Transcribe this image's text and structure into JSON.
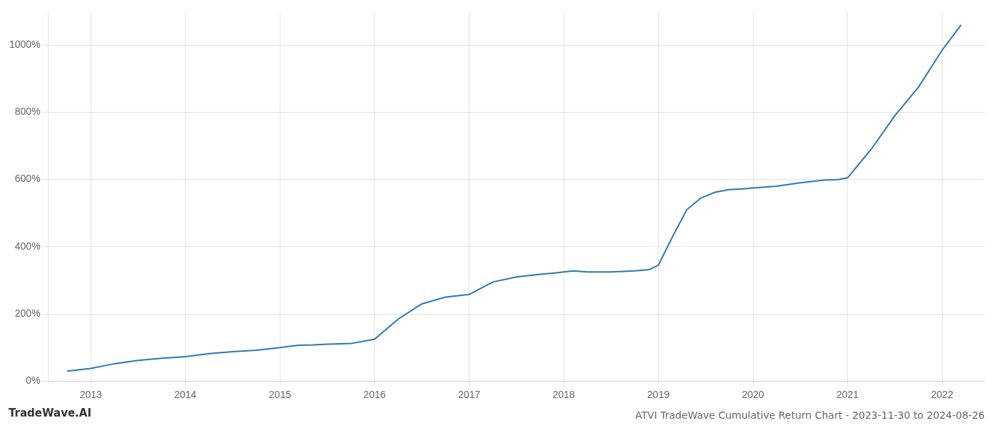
{
  "chart_data": {
    "type": "line",
    "title": "ATVI TradeWave Cumulative Return Chart - 2023-11-30 to 2024-08-26",
    "annotations": [
      "TradeWave.AI"
    ],
    "x": [
      2012.75,
      2013.0,
      2013.25,
      2013.5,
      2013.75,
      2014.0,
      2014.25,
      2014.5,
      2014.75,
      2015.0,
      2015.1,
      2015.2,
      2015.35,
      2015.5,
      2015.75,
      2016.0,
      2016.25,
      2016.5,
      2016.75,
      2017.0,
      2017.25,
      2017.5,
      2017.75,
      2017.9,
      2018.0,
      2018.1,
      2018.25,
      2018.5,
      2018.75,
      2018.9,
      2019.0,
      2019.15,
      2019.3,
      2019.45,
      2019.6,
      2019.75,
      2019.9,
      2020.0,
      2020.25,
      2020.5,
      2020.75,
      2020.9,
      2021.0,
      2021.25,
      2021.5,
      2021.75,
      2022.0,
      2022.2
    ],
    "values": [
      30,
      38,
      52,
      62,
      68,
      73,
      82,
      88,
      92,
      100,
      104,
      107,
      108,
      110,
      112,
      125,
      185,
      230,
      250,
      258,
      295,
      310,
      318,
      322,
      325,
      328,
      325,
      325,
      328,
      332,
      345,
      430,
      510,
      545,
      562,
      570,
      572,
      575,
      580,
      590,
      598,
      600,
      605,
      690,
      790,
      875,
      985,
      1060
    ],
    "color": "#2878b8",
    "xlim": [
      2012.55,
      2022.45
    ],
    "xticks": [
      2013,
      2014,
      2015,
      2016,
      2017,
      2018,
      2019,
      2020,
      2021,
      2022
    ],
    "ylim": [
      0,
      1100
    ],
    "yticks": [
      {
        "value": 0,
        "label": "0%"
      },
      {
        "value": 200,
        "label": "200%"
      },
      {
        "value": 400,
        "label": "400%"
      },
      {
        "value": 600,
        "label": "600%"
      },
      {
        "value": 800,
        "label": "800%"
      },
      {
        "value": 1000,
        "label": "1000%"
      }
    ],
    "grid": true
  }
}
